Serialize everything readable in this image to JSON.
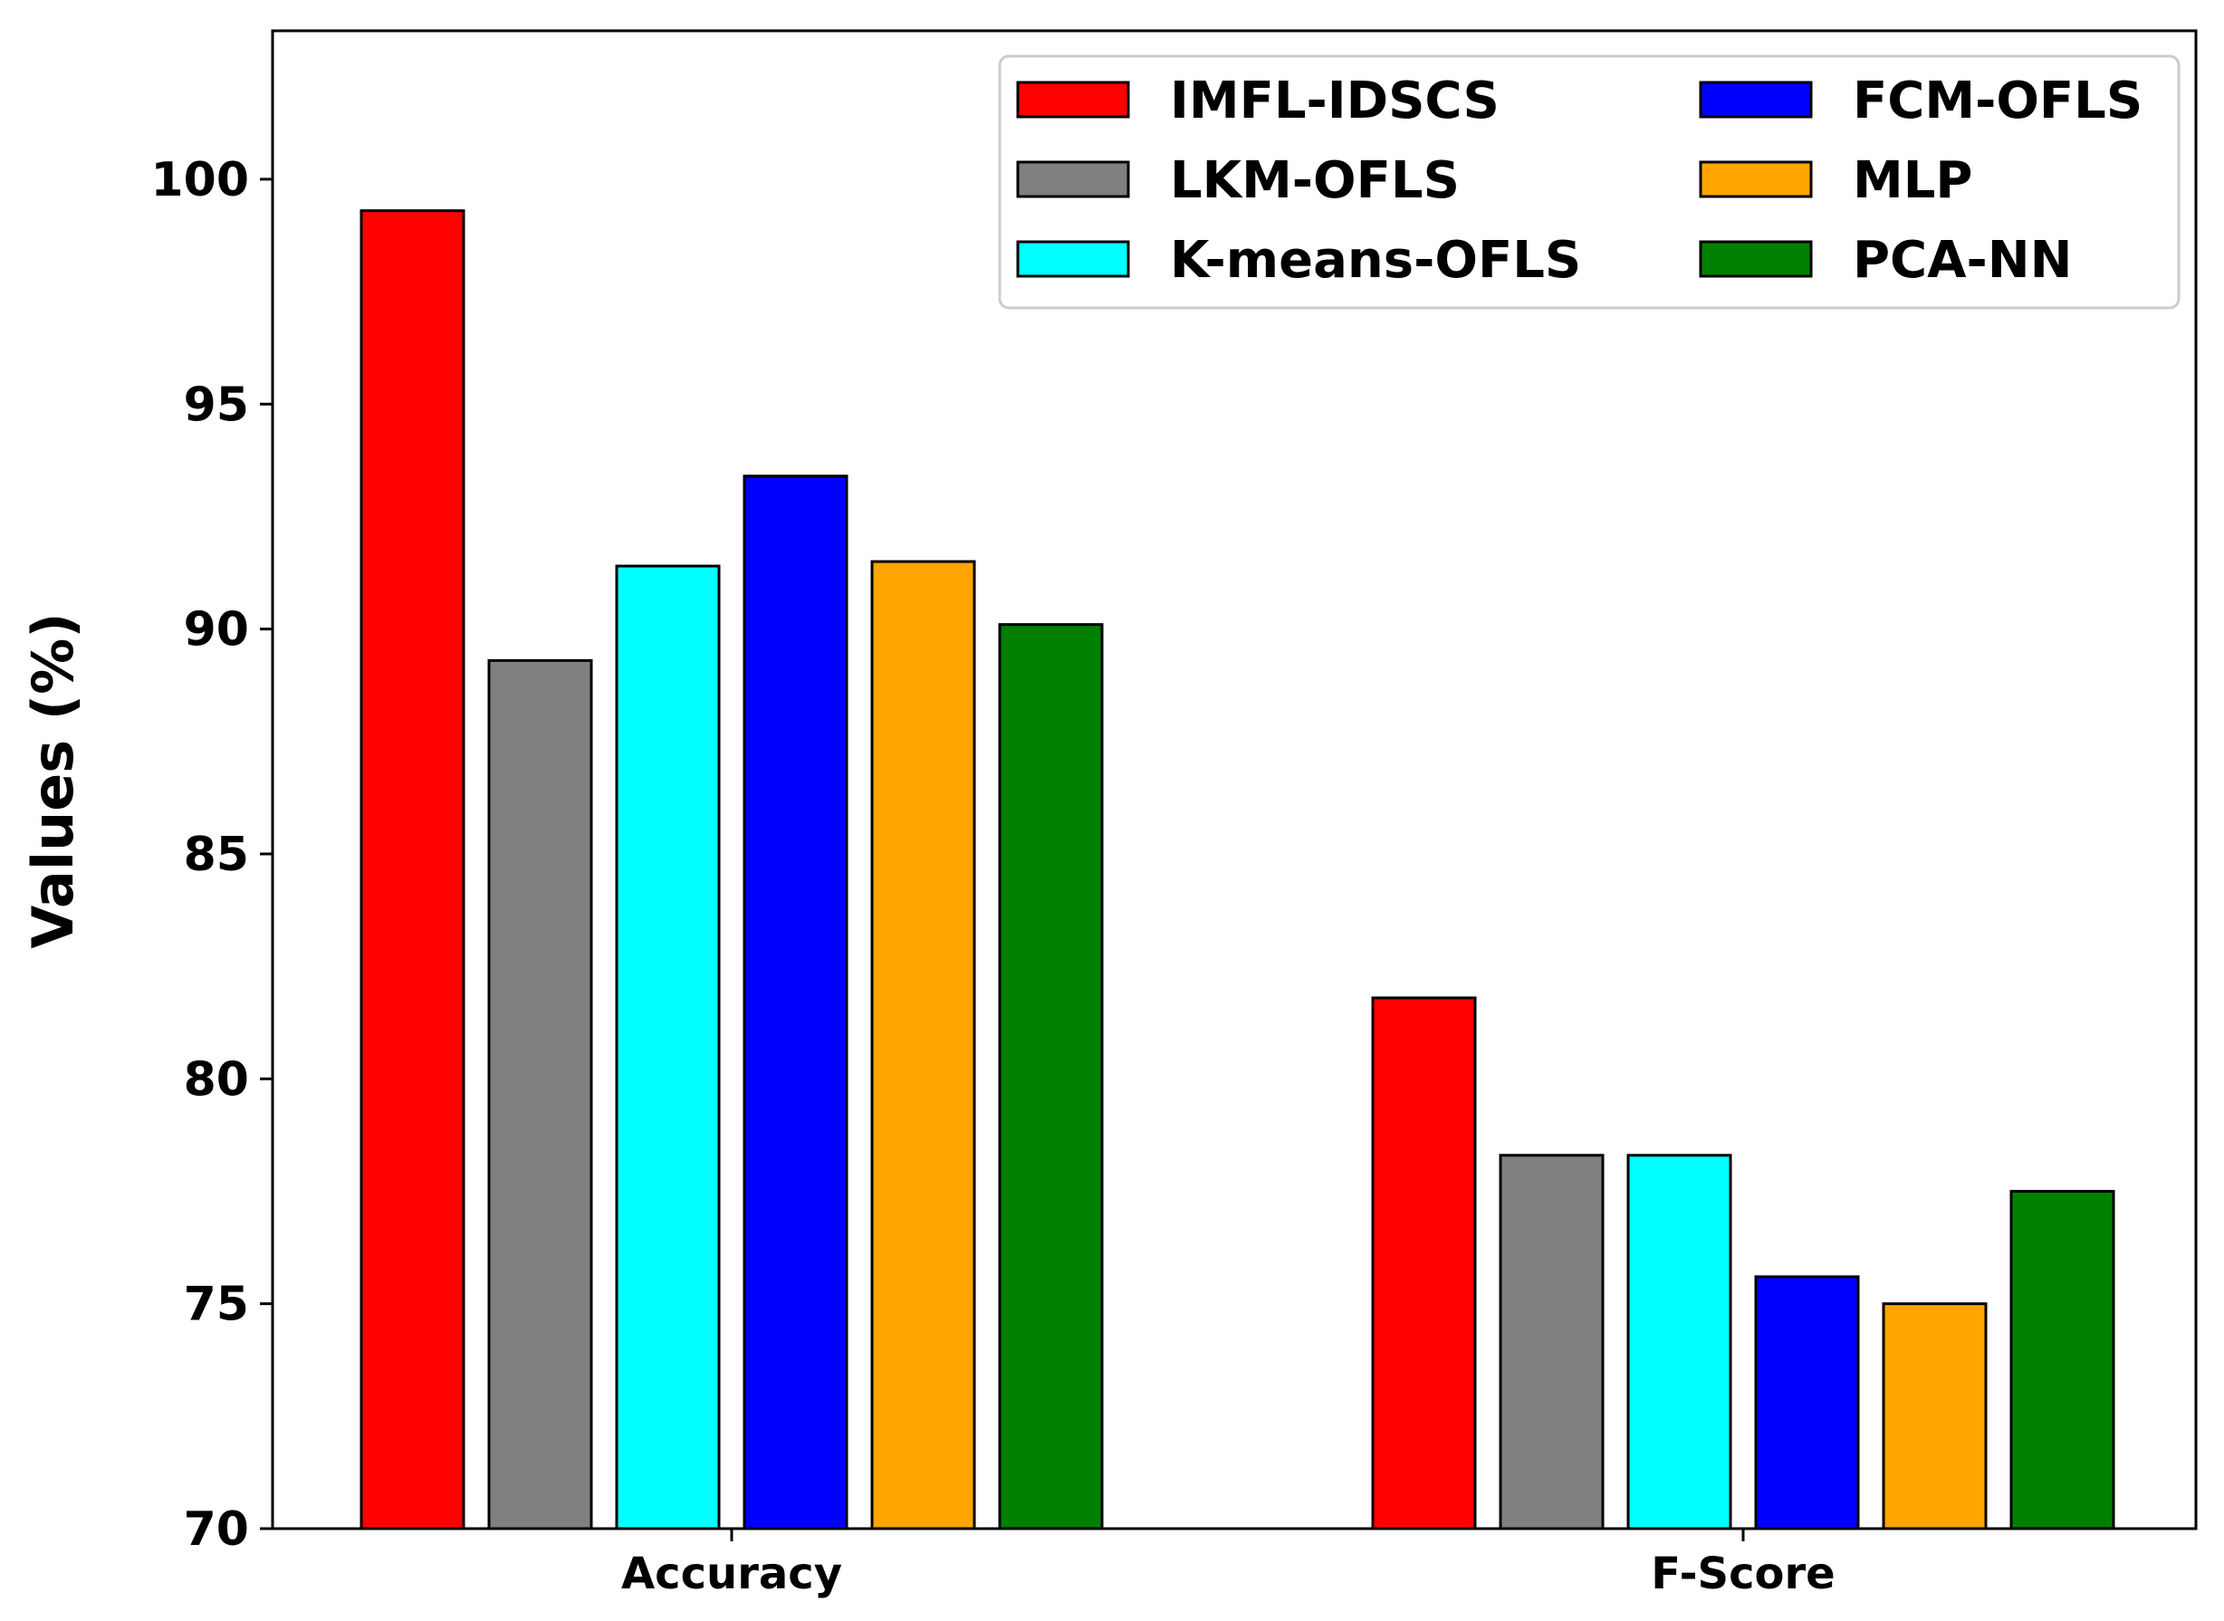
{
  "chart_data": {
    "type": "bar",
    "title": "",
    "xlabel": "",
    "ylabel": "Values (%)",
    "ylim": [
      70,
      103.3
    ],
    "yticks": [
      70,
      75,
      80,
      85,
      90,
      95,
      100
    ],
    "categories": [
      "Accuracy",
      "F-Score"
    ],
    "legend_position": "top-right",
    "legend_columns": 2,
    "grid": false,
    "series": [
      {
        "name": "IMFL-IDSCS",
        "color": "#ff0000",
        "values": [
          99.3,
          81.8
        ]
      },
      {
        "name": "LKM-OFLS",
        "color": "#808080",
        "values": [
          89.3,
          78.3
        ]
      },
      {
        "name": "K-means-OFLS",
        "color": "#00ffff",
        "values": [
          91.4,
          78.3
        ]
      },
      {
        "name": "FCM-OFLS",
        "color": "#0000ff",
        "values": [
          93.4,
          75.6
        ]
      },
      {
        "name": "MLP",
        "color": "#ffa500",
        "values": [
          91.5,
          75.0
        ]
      },
      {
        "name": "PCA-NN",
        "color": "#008000",
        "values": [
          90.1,
          77.5
        ]
      }
    ]
  }
}
